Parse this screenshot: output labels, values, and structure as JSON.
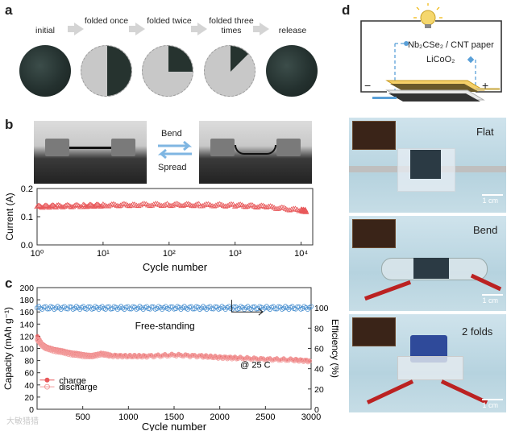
{
  "panels": {
    "a": "a",
    "b": "b",
    "c": "c",
    "d": "d"
  },
  "panel_a": {
    "steps": [
      "initial",
      "folded once",
      "folded twice",
      "folded three times",
      "release"
    ]
  },
  "panel_b": {
    "bend_label": "Bend",
    "spread_label": "Spread"
  },
  "panel_d": {
    "circuit_label_1": "Nb₂CSe₂ / CNT paper",
    "circuit_label_2": "LiCoO₂",
    "minus": "−",
    "plus": "+",
    "photos": [
      {
        "label": "Flat",
        "scale": "1 cm"
      },
      {
        "label": "Bend",
        "scale": "1 cm"
      },
      {
        "label": "2 folds",
        "scale": "1 cm"
      }
    ]
  },
  "watermark": "大敏猎猎",
  "colors": {
    "charge": "#e8585a",
    "discharge": "#f29a9a",
    "efficiency": "#4a90d0",
    "current": "#e8585a"
  },
  "chart_data": [
    {
      "type": "line",
      "title": "",
      "xlabel": "Cycle number",
      "ylabel": "Current (A)",
      "xscale": "log",
      "xlim": [
        1,
        15000
      ],
      "ylim": [
        0.0,
        0.2
      ],
      "xticks": [
        "10⁰",
        "10¹",
        "10²",
        "10³",
        "10⁴"
      ],
      "xtick_values": [
        1,
        10,
        100,
        1000,
        10000
      ],
      "yticks": [
        "0.0",
        "0.1",
        "0.2"
      ],
      "ytick_values": [
        0.0,
        0.1,
        0.2
      ],
      "series": [
        {
          "name": "current",
          "x": [
            1,
            2,
            5,
            10,
            30,
            100,
            300,
            1000,
            3000,
            10000,
            12000
          ],
          "y": [
            0.135,
            0.137,
            0.138,
            0.14,
            0.142,
            0.142,
            0.141,
            0.14,
            0.135,
            0.122,
            0.12
          ]
        }
      ]
    },
    {
      "type": "scatter",
      "title": "",
      "xlabel": "Cycle number",
      "ylabel": "Capacity (mAh g⁻¹)",
      "y2label": "Efficiency (%)",
      "xlim": [
        0,
        3000
      ],
      "ylim": [
        0,
        200
      ],
      "y2lim": [
        0,
        120
      ],
      "xticks": [
        "500",
        "1000",
        "1500",
        "2000",
        "2500",
        "3000"
      ],
      "xtick_values": [
        500,
        1000,
        1500,
        2000,
        2500,
        3000
      ],
      "yticks": [
        "0",
        "20",
        "40",
        "60",
        "80",
        "100",
        "120",
        "140",
        "160",
        "180",
        "200"
      ],
      "ytick_values": [
        0,
        20,
        40,
        60,
        80,
        100,
        120,
        140,
        160,
        180,
        200
      ],
      "y2ticks": [
        "0",
        "20",
        "40",
        "60",
        "80",
        "100"
      ],
      "y2tick_values": [
        0,
        20,
        40,
        60,
        80,
        100
      ],
      "annotations": [
        "Free-standing",
        "@ 25 C"
      ],
      "legend": [
        "charge",
        "discharge"
      ],
      "series": [
        {
          "name": "charge",
          "x": [
            1,
            50,
            100,
            200,
            300,
            400,
            500,
            600,
            700,
            800,
            1000,
            1200,
            1500,
            1800,
            2000,
            2200,
            2500,
            2800,
            3000
          ],
          "y": [
            120,
            108,
            102,
            98,
            95,
            92,
            90,
            88,
            92,
            89,
            88,
            88,
            90,
            88,
            86,
            85,
            83,
            82,
            80
          ]
        },
        {
          "name": "discharge",
          "x": [
            1,
            50,
            100,
            200,
            300,
            400,
            500,
            600,
            700,
            800,
            1000,
            1200,
            1500,
            1800,
            2000,
            2200,
            2500,
            2800,
            3000
          ],
          "y": [
            115,
            106,
            100,
            96,
            93,
            90,
            88,
            87,
            91,
            88,
            87,
            87,
            89,
            87,
            85,
            84,
            82,
            81,
            79
          ]
        },
        {
          "name": "efficiency",
          "axis": "y2",
          "x": [
            1,
            500,
            1000,
            1500,
            2000,
            2500,
            3000
          ],
          "y": [
            100,
            100,
            100,
            100,
            100,
            100,
            100
          ]
        }
      ]
    }
  ]
}
